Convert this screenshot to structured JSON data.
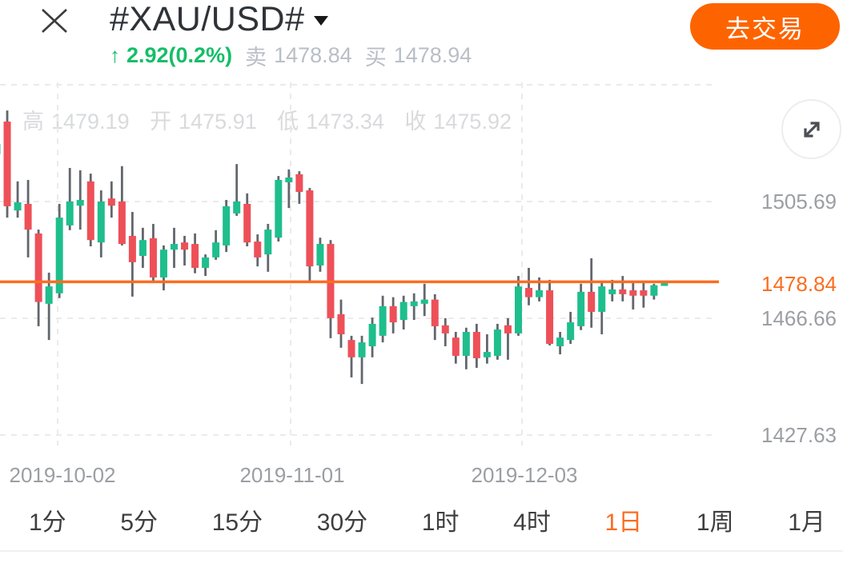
{
  "header": {
    "symbol": "#XAU/USD#",
    "trade_button": "去交易",
    "change_arrow": "↑",
    "change_text": "2.92(0.2%)",
    "sell_label": "卖",
    "sell_price": "1478.84",
    "buy_label": "买",
    "buy_price": "1478.94"
  },
  "ohlc_bar": {
    "high_label": "高",
    "high": "1479.19",
    "open_label": "开",
    "open": "1475.91",
    "low_label": "低",
    "low": "1473.34",
    "close_label": "收",
    "close": "1475.92"
  },
  "chart_data": {
    "type": "candlestick",
    "symbol": "#XAU/USD#",
    "interval": "1日",
    "current_price": 1478.84,
    "current_price_label": "1478.84",
    "y_axis_ticks": [
      1505.69,
      1466.66,
      1427.63
    ],
    "x_axis_labels": [
      "2019-10-02",
      "2019-11-01",
      "2019-12-03"
    ],
    "candles": [
      [
        1521.5,
        1526.0,
        1519.0,
        1524.9
      ],
      [
        1532.4,
        1536.1,
        1500.3,
        1504.1
      ],
      [
        1502.7,
        1512.4,
        1500.3,
        1505.4
      ],
      [
        1504.9,
        1512.9,
        1487.0,
        1496.3
      ],
      [
        1495.0,
        1496.3,
        1464.0,
        1472.1
      ],
      [
        1471.5,
        1481.9,
        1459.4,
        1477.3
      ],
      [
        1475.0,
        1504.9,
        1473.4,
        1500.3
      ],
      [
        1497.7,
        1516.9,
        1496.1,
        1505.7
      ],
      [
        1504.3,
        1516.1,
        1496.3,
        1506.2
      ],
      [
        1512.4,
        1515.0,
        1490.7,
        1492.8
      ],
      [
        1492.0,
        1509.4,
        1487.0,
        1505.7
      ],
      [
        1506.7,
        1512.4,
        1500.3,
        1504.3
      ],
      [
        1505.7,
        1517.5,
        1491.0,
        1491.5
      ],
      [
        1494.2,
        1502.2,
        1473.9,
        1485.4
      ],
      [
        1487.5,
        1496.9,
        1483.5,
        1492.8
      ],
      [
        1493.4,
        1498.2,
        1479.0,
        1480.3
      ],
      [
        1480.3,
        1491.0,
        1476.0,
        1489.6
      ],
      [
        1489.6,
        1496.9,
        1483.5,
        1491.5
      ],
      [
        1492.0,
        1494.2,
        1484.3,
        1489.6
      ],
      [
        1491.5,
        1495.0,
        1481.7,
        1483.5
      ],
      [
        1483.5,
        1488.0,
        1480.8,
        1487.0
      ],
      [
        1487.0,
        1496.1,
        1486.2,
        1492.0
      ],
      [
        1491.0,
        1506.2,
        1488.8,
        1504.1
      ],
      [
        1501.7,
        1518.2,
        1500.9,
        1505.7
      ],
      [
        1504.9,
        1508.4,
        1490.7,
        1492.0
      ],
      [
        1492.3,
        1494.7,
        1484.0,
        1487.0
      ],
      [
        1488.0,
        1498.2,
        1482.2,
        1496.3
      ],
      [
        1493.6,
        1514.2,
        1492.3,
        1512.9
      ],
      [
        1512.1,
        1516.4,
        1503.5,
        1513.7
      ],
      [
        1514.8,
        1515.8,
        1504.9,
        1508.9
      ],
      [
        1509.4,
        1510.2,
        1478.7,
        1484.0
      ],
      [
        1484.3,
        1493.6,
        1482.2,
        1491.5
      ],
      [
        1491.5,
        1492.8,
        1460.0,
        1466.7
      ],
      [
        1468.0,
        1472.9,
        1456.8,
        1461.3
      ],
      [
        1459.4,
        1460.8,
        1446.9,
        1453.6
      ],
      [
        1453.6,
        1460.8,
        1444.7,
        1458.6
      ],
      [
        1457.3,
        1466.9,
        1453.6,
        1464.8
      ],
      [
        1460.8,
        1474.2,
        1458.6,
        1470.7
      ],
      [
        1470.7,
        1473.7,
        1461.6,
        1465.3
      ],
      [
        1466.1,
        1474.2,
        1462.9,
        1472.1
      ],
      [
        1470.7,
        1475.0,
        1466.1,
        1472.3
      ],
      [
        1471.5,
        1478.2,
        1467.4,
        1472.9
      ],
      [
        1472.9,
        1474.7,
        1459.4,
        1464.0
      ],
      [
        1464.3,
        1466.7,
        1457.3,
        1461.6
      ],
      [
        1460.2,
        1462.1,
        1451.5,
        1454.1
      ],
      [
        1454.1,
        1463.5,
        1449.6,
        1462.1
      ],
      [
        1462.1,
        1464.8,
        1450.1,
        1453.3
      ],
      [
        1453.6,
        1461.3,
        1451.5,
        1455.4
      ],
      [
        1454.1,
        1464.8,
        1452.8,
        1462.9
      ],
      [
        1464.3,
        1466.7,
        1452.8,
        1461.6
      ],
      [
        1461.6,
        1480.8,
        1460.8,
        1477.3
      ],
      [
        1476.8,
        1483.5,
        1471.0,
        1473.7
      ],
      [
        1473.7,
        1480.3,
        1472.3,
        1476.0
      ],
      [
        1476.0,
        1479.5,
        1457.6,
        1458.1
      ],
      [
        1457.3,
        1462.1,
        1454.6,
        1460.2
      ],
      [
        1459.4,
        1468.8,
        1458.1,
        1465.3
      ],
      [
        1464.0,
        1478.2,
        1462.7,
        1475.5
      ],
      [
        1475.5,
        1486.7,
        1463.5,
        1468.8
      ],
      [
        1468.8,
        1479.0,
        1461.3,
        1477.3
      ],
      [
        1474.7,
        1479.5,
        1472.3,
        1476.3
      ],
      [
        1476.3,
        1480.8,
        1472.3,
        1474.7
      ],
      [
        1476.0,
        1479.0,
        1469.6,
        1474.2
      ],
      [
        1476.0,
        1478.7,
        1470.2,
        1474.2
      ],
      [
        1474.2,
        1478.2,
        1472.9,
        1477.7
      ],
      [
        1478.0,
        1478.6,
        1477.7,
        1478.4
      ]
    ]
  },
  "timeframes": {
    "items": [
      {
        "label": "1分",
        "active": false
      },
      {
        "label": "5分",
        "active": false
      },
      {
        "label": "15分",
        "active": false
      },
      {
        "label": "30分",
        "active": false
      },
      {
        "label": "1时",
        "active": false
      },
      {
        "label": "4时",
        "active": false
      },
      {
        "label": "1日",
        "active": true
      },
      {
        "label": "1周",
        "active": false
      },
      {
        "label": "1月",
        "active": false
      }
    ]
  },
  "colors": {
    "candle_up": "#1FBE8D",
    "candle_down": "#EE5058",
    "wick": "#62666D",
    "orange_line": "#FB6D20",
    "button_orange": "#FD6400",
    "text_green": "#15BE68",
    "gridline": "#EBEBEB"
  }
}
